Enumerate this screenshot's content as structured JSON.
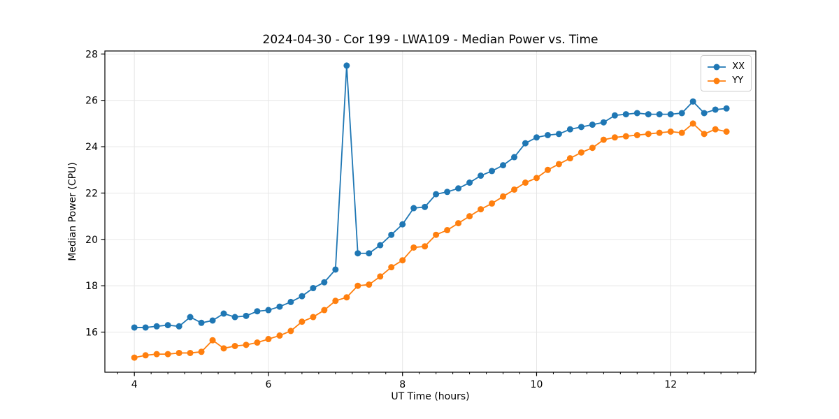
{
  "chart_data": {
    "type": "line",
    "title": "2024-04-30 - Cor 199 - LWA109 - Median Power vs. Time",
    "xlabel": "UT Time (hours)",
    "ylabel": "Median Power (CPU)",
    "xlim": [
      3.56,
      13.27
    ],
    "ylim": [
      14.27,
      28.13
    ],
    "x_major_ticks": [
      4,
      6,
      8,
      10,
      12
    ],
    "x_minor_tick_step": 0.25,
    "y_major_ticks": [
      16,
      18,
      20,
      22,
      24,
      26,
      28
    ],
    "grid": true,
    "legend_position": "upper right",
    "x": [
      4.0,
      4.167,
      4.333,
      4.5,
      4.667,
      4.833,
      5.0,
      5.167,
      5.333,
      5.5,
      5.667,
      5.833,
      6.0,
      6.167,
      6.333,
      6.5,
      6.667,
      6.833,
      7.0,
      7.167,
      7.333,
      7.5,
      7.667,
      7.833,
      8.0,
      8.167,
      8.333,
      8.5,
      8.667,
      8.833,
      9.0,
      9.167,
      9.333,
      9.5,
      9.667,
      9.833,
      10.0,
      10.167,
      10.333,
      10.5,
      10.667,
      10.833,
      11.0,
      11.167,
      11.333,
      11.5,
      11.667,
      11.833,
      12.0,
      12.167,
      12.333,
      12.5,
      12.667,
      12.833
    ],
    "series": [
      {
        "name": "XX",
        "color": "#1f77b4",
        "values": [
          16.2,
          16.2,
          16.25,
          16.3,
          16.25,
          16.65,
          16.4,
          16.5,
          16.8,
          16.65,
          16.7,
          16.9,
          16.95,
          17.1,
          17.3,
          17.55,
          17.9,
          18.15,
          18.7,
          27.5,
          19.4,
          19.4,
          19.75,
          20.2,
          20.65,
          21.35,
          21.4,
          21.95,
          22.05,
          22.2,
          22.45,
          22.75,
          22.95,
          23.2,
          23.55,
          24.15,
          24.4,
          24.5,
          24.55,
          24.75,
          24.85,
          24.95,
          25.05,
          25.35,
          25.4,
          25.45,
          25.4,
          25.4,
          25.4,
          25.45,
          25.95,
          25.45,
          25.6,
          25.65
        ]
      },
      {
        "name": "YY",
        "color": "#ff7f0e",
        "values": [
          14.9,
          15.0,
          15.05,
          15.05,
          15.1,
          15.1,
          15.15,
          15.65,
          15.3,
          15.4,
          15.45,
          15.55,
          15.7,
          15.85,
          16.05,
          16.45,
          16.65,
          16.95,
          17.35,
          17.5,
          18.0,
          18.05,
          18.4,
          18.8,
          19.1,
          19.65,
          19.7,
          20.2,
          20.4,
          20.7,
          21.0,
          21.3,
          21.55,
          21.85,
          22.15,
          22.45,
          22.65,
          23.0,
          23.25,
          23.5,
          23.75,
          23.95,
          24.3,
          24.4,
          24.45,
          24.5,
          24.55,
          24.6,
          24.65,
          24.6,
          25.0,
          24.55,
          24.75,
          24.65
        ]
      }
    ],
    "style": {
      "grid_color": "#e6e6e6",
      "spine_color": "#000000",
      "tick_label_color": "#000000"
    }
  }
}
